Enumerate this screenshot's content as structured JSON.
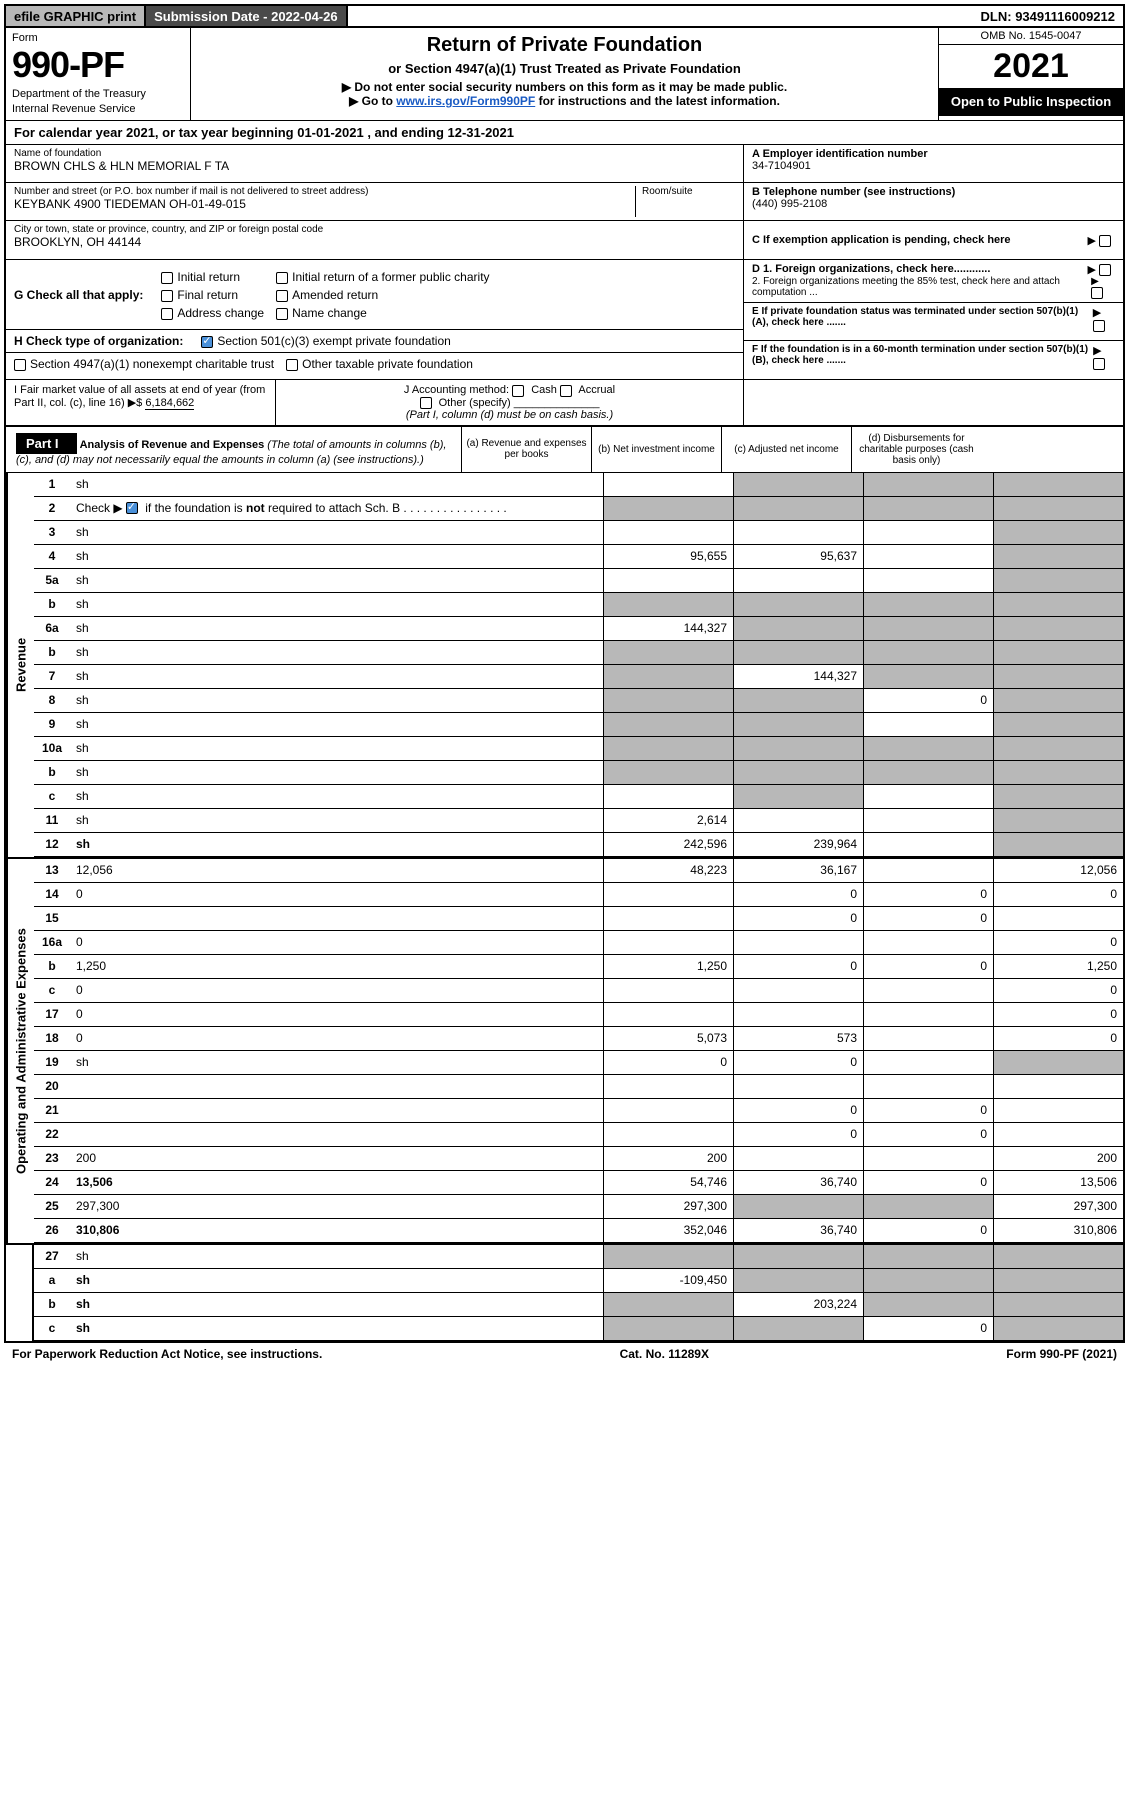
{
  "top": {
    "efile": "efile GRAPHIC print",
    "subdate_lbl": "Submission Date - 2022-04-26",
    "dln": "DLN: 93491116009212"
  },
  "header": {
    "form_lbl": "Form",
    "form_num": "990-PF",
    "dept": "Department of the Treasury",
    "irs": "Internal Revenue Service",
    "title": "Return of Private Foundation",
    "sub": "or Section 4947(a)(1) Trust Treated as Private Foundation",
    "note1": "▶ Do not enter social security numbers on this form as it may be made public.",
    "note2_pre": "▶ Go to ",
    "note2_link": "www.irs.gov/Form990PF",
    "note2_post": " for instructions and the latest information.",
    "omb": "OMB No. 1545-0047",
    "year": "2021",
    "open": "Open to Public Inspection"
  },
  "cal": "For calendar year 2021, or tax year beginning 01-01-2021              , and ending 12-31-2021",
  "info": {
    "name_lbl": "Name of foundation",
    "name": "BROWN CHLS & HLN MEMORIAL F TA",
    "addr_lbl": "Number and street (or P.O. box number if mail is not delivered to street address)",
    "addr": "KEYBANK 4900 TIEDEMAN OH-01-49-015",
    "room_lbl": "Room/suite",
    "city_lbl": "City or town, state or province, country, and ZIP or foreign postal code",
    "city": "BROOKLYN, OH  44144",
    "ein_lbl": "A Employer identification number",
    "ein": "34-7104901",
    "phone_lbl": "B Telephone number (see instructions)",
    "phone": "(440) 995-2108",
    "c_lbl": "C If exemption application is pending, check here",
    "d1": "D 1. Foreign organizations, check here............",
    "d2": "2. Foreign organizations meeting the 85% test, check here and attach computation ...",
    "e_lbl": "E If private foundation status was terminated under section 507(b)(1)(A), check here .......",
    "f_lbl": "F If the foundation is in a 60-month termination under section 507(b)(1)(B), check here ......."
  },
  "g": {
    "label": "G Check all that apply:",
    "opts": [
      "Initial return",
      "Final return",
      "Address change",
      "Initial return of a former public charity",
      "Amended return",
      "Name change"
    ]
  },
  "h": {
    "label": "H Check type of organization:",
    "opt1": "Section 501(c)(3) exempt private foundation",
    "opt2": "Section 4947(a)(1) nonexempt charitable trust",
    "opt3": "Other taxable private foundation"
  },
  "i": {
    "label": "I Fair market value of all assets at end of year (from Part II, col. (c), line 16)",
    "val": "6,184,662",
    "j_lbl": "J Accounting method:",
    "j_opts": [
      "Cash",
      "Accrual"
    ],
    "j_other": "Other (specify)",
    "j_note": "(Part I, column (d) must be on cash basis.)"
  },
  "part1": {
    "hdr": "Part I",
    "title": "Analysis of Revenue and Expenses",
    "note": " (The total of amounts in columns (b), (c), and (d) may not necessarily equal the amounts in column (a) (see instructions).)",
    "col_a": "(a)  Revenue and expenses per books",
    "col_b": "(b)  Net investment income",
    "col_c": "(c)  Adjusted net income",
    "col_d": "(d)  Disbursements for charitable purposes (cash basis only)"
  },
  "side": {
    "rev": "Revenue",
    "exp": "Operating and Administrative Expenses"
  },
  "rows": [
    {
      "n": "1",
      "d": "sh",
      "a": "",
      "b": "sh",
      "c": "sh"
    },
    {
      "n": "2",
      "d": "sh",
      "a": "sh",
      "b": "sh",
      "c": "sh",
      "bold_not": true
    },
    {
      "n": "3",
      "d": "sh",
      "a": "",
      "b": "",
      "c": ""
    },
    {
      "n": "4",
      "d": "sh",
      "a": "95,655",
      "b": "95,637",
      "c": ""
    },
    {
      "n": "5a",
      "d": "sh",
      "a": "",
      "b": "",
      "c": ""
    },
    {
      "n": "b",
      "d": "sh",
      "a": "sh",
      "b": "sh",
      "c": "sh"
    },
    {
      "n": "6a",
      "d": "sh",
      "a": "144,327",
      "b": "sh",
      "c": "sh"
    },
    {
      "n": "b",
      "d": "sh",
      "a": "sh",
      "b": "sh",
      "c": "sh"
    },
    {
      "n": "7",
      "d": "sh",
      "a": "sh",
      "b": "144,327",
      "c": "sh"
    },
    {
      "n": "8",
      "d": "sh",
      "a": "sh",
      "b": "sh",
      "c": "0"
    },
    {
      "n": "9",
      "d": "sh",
      "a": "sh",
      "b": "sh",
      "c": ""
    },
    {
      "n": "10a",
      "d": "sh",
      "a": "sh",
      "b": "sh",
      "c": "sh"
    },
    {
      "n": "b",
      "d": "sh",
      "a": "sh",
      "b": "sh",
      "c": "sh"
    },
    {
      "n": "c",
      "d": "sh",
      "a": "",
      "b": "sh",
      "c": ""
    },
    {
      "n": "11",
      "d": "sh",
      "a": "2,614",
      "b": "",
      "c": ""
    },
    {
      "n": "12",
      "d": "sh",
      "a": "242,596",
      "b": "239,964",
      "c": "",
      "bold": true
    }
  ],
  "exp_rows": [
    {
      "n": "13",
      "d": "12,056",
      "a": "48,223",
      "b": "36,167",
      "c": ""
    },
    {
      "n": "14",
      "d": "0",
      "a": "",
      "b": "0",
      "c": "0"
    },
    {
      "n": "15",
      "d": "",
      "a": "",
      "b": "0",
      "c": "0"
    },
    {
      "n": "16a",
      "d": "0",
      "a": "",
      "b": "",
      "c": ""
    },
    {
      "n": "b",
      "d": "1,250",
      "a": "1,250",
      "b": "0",
      "c": "0"
    },
    {
      "n": "c",
      "d": "0",
      "a": "",
      "b": "",
      "c": ""
    },
    {
      "n": "17",
      "d": "0",
      "a": "",
      "b": "",
      "c": ""
    },
    {
      "n": "18",
      "d": "0",
      "a": "5,073",
      "b": "573",
      "c": ""
    },
    {
      "n": "19",
      "d": "sh",
      "a": "0",
      "b": "0",
      "c": ""
    },
    {
      "n": "20",
      "d": "",
      "a": "",
      "b": "",
      "c": ""
    },
    {
      "n": "21",
      "d": "",
      "a": "",
      "b": "0",
      "c": "0"
    },
    {
      "n": "22",
      "d": "",
      "a": "",
      "b": "0",
      "c": "0"
    },
    {
      "n": "23",
      "d": "200",
      "a": "200",
      "b": "",
      "c": ""
    },
    {
      "n": "24",
      "d": "13,506",
      "a": "54,746",
      "b": "36,740",
      "c": "0",
      "bold": true
    },
    {
      "n": "25",
      "d": "297,300",
      "a": "297,300",
      "b": "sh",
      "c": "sh"
    },
    {
      "n": "26",
      "d": "310,806",
      "a": "352,046",
      "b": "36,740",
      "c": "0",
      "bold": true
    }
  ],
  "bottom_rows": [
    {
      "n": "27",
      "d": "sh",
      "a": "sh",
      "b": "sh",
      "c": "sh"
    },
    {
      "n": "a",
      "d": "sh",
      "a": "-109,450",
      "b": "sh",
      "c": "sh",
      "bold": true
    },
    {
      "n": "b",
      "d": "sh",
      "a": "sh",
      "b": "203,224",
      "c": "sh",
      "bold": true
    },
    {
      "n": "c",
      "d": "sh",
      "a": "sh",
      "b": "sh",
      "c": "0",
      "bold": true
    }
  ],
  "footer": {
    "left": "For Paperwork Reduction Act Notice, see instructions.",
    "mid": "Cat. No. 11289X",
    "right": "Form 990-PF (2021)"
  }
}
